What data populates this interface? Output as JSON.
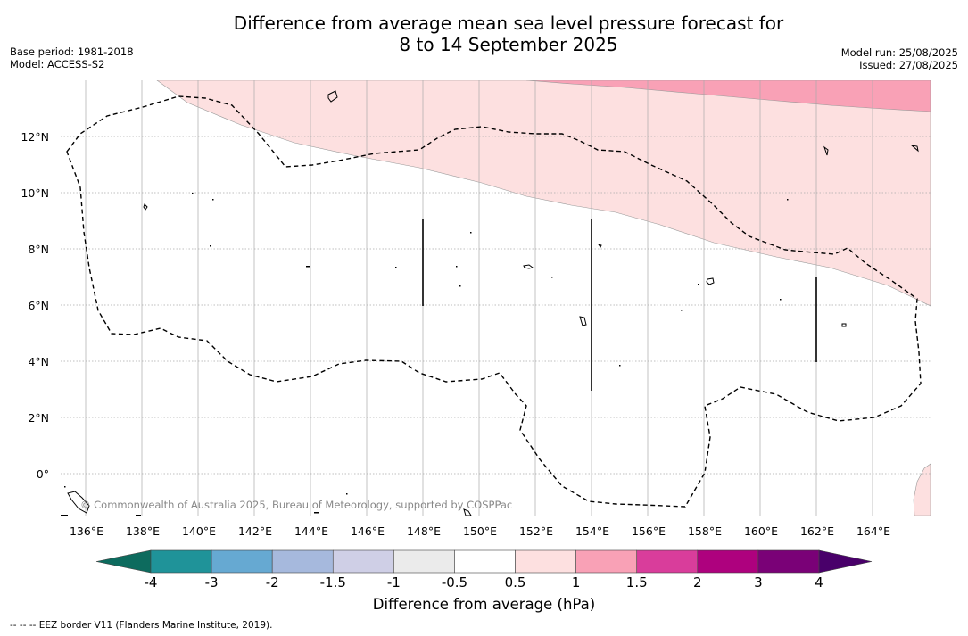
{
  "header": {
    "title_line1": "Difference from average mean sea level pressure forecast for",
    "title_line2": "8 to 14 September 2025",
    "base_period": "Base period: 1981-2018",
    "model": "Model: ACCESS-S2",
    "model_run": "Model run: 25/08/2025",
    "issued": "Issued: 27/08/2025"
  },
  "map": {
    "lat_labels": [
      "12°N",
      "10°N",
      "8°N",
      "6°N",
      "4°N",
      "2°N",
      "0°"
    ],
    "lon_labels": [
      "136°E",
      "138°E",
      "140°E",
      "142°E",
      "144°E",
      "146°E",
      "148°E",
      "150°E",
      "152°E",
      "154°E",
      "156°E",
      "158°E",
      "160°E",
      "162°E",
      "164°E"
    ],
    "copyright": "© Commonwealth of Australia 2025, Bureau of Meteorology, supported by COSPPac"
  },
  "colorbar": {
    "ticks": [
      "-4",
      "-3",
      "-2",
      "-1.5",
      "-1",
      "-0.5",
      "0.5",
      "1",
      "1.5",
      "2",
      "3",
      "4"
    ],
    "colors": {
      "below_min": "#0d6b5e",
      "bins": [
        "#1f9399",
        "#66a9d2",
        "#a6b9dd",
        "#cfcfe6",
        "#ebebeb",
        "#ffffff",
        "#fde0e0",
        "#f9a1b6",
        "#d93d9b",
        "#ae017e",
        "#7a0177"
      ],
      "above_max": "#49006a"
    },
    "label": "Difference from average (hPa)"
  },
  "footnote": "--  --  -- EEZ border V11 (Flanders Marine Institute, 2019)."
}
